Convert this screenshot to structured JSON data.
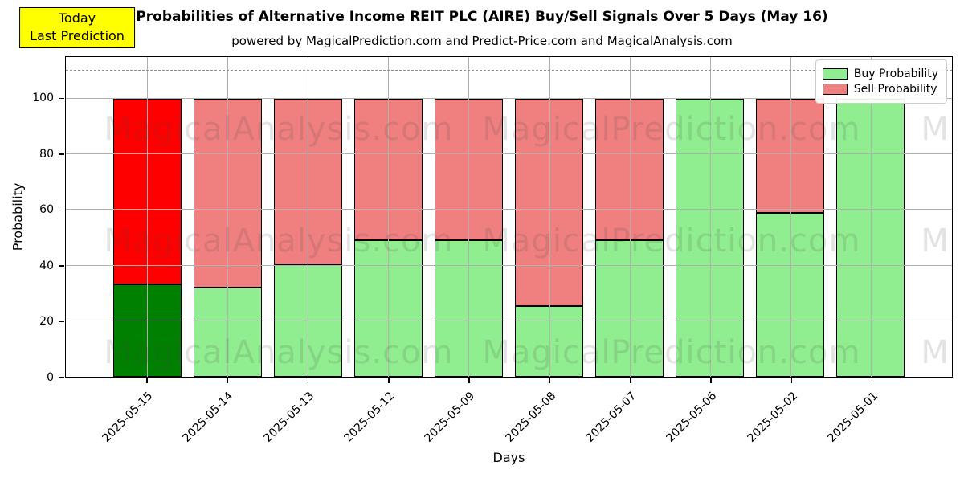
{
  "title": "Probabilities of Alternative Income REIT PLC (AIRE) Buy/Sell Signals Over 5 Days (May 16)",
  "subtitle": "powered by MagicalPrediction.com and Predict-Price.com and MagicalAnalysis.com",
  "annotation": {
    "line1": "Today",
    "line2": "Last Prediction",
    "bg_color": "#ffff00"
  },
  "legend": [
    {
      "label": "Buy Probability",
      "color": "#90ee90"
    },
    {
      "label": "Sell Probability",
      "color": "#f08080"
    }
  ],
  "watermarks": {
    "left_text": "MagicalAnalysis.com",
    "right_text": "MagicalPrediction.com",
    "edge_text": "M",
    "rows_y_percent": [
      22.5,
      57.5,
      92.5
    ],
    "left_x_percent": 4.3,
    "right_x_percent": 47,
    "edge_x_percent": 96.5
  },
  "colors": {
    "buy_default": "#90ee90",
    "sell_default": "#f08080",
    "buy_today": "#008000",
    "sell_today": "#ff0000",
    "bar_edge": "#000000",
    "grid": "#b0b0b0",
    "dashed_line": "#8f8f8f"
  },
  "chart_data": {
    "type": "bar",
    "stacked": true,
    "title": "Probabilities of Alternative Income REIT PLC (AIRE) Buy/Sell Signals Over 5 Days (May 16)",
    "xlabel": "Days",
    "ylabel": "Probability",
    "categories": [
      "2025-05-15",
      "2025-05-14",
      "2025-05-13",
      "2025-05-12",
      "2025-05-09",
      "2025-05-08",
      "2025-05-07",
      "2025-05-06",
      "2025-05-02",
      "2025-05-01"
    ],
    "series": [
      {
        "name": "Buy Probability",
        "values": [
          33,
          32,
          40,
          49,
          49,
          25,
          49,
          100,
          59,
          100
        ]
      },
      {
        "name": "Sell Probability",
        "values": [
          67,
          68,
          60,
          51,
          51,
          75,
          51,
          0,
          41,
          0
        ]
      }
    ],
    "today_index": 0,
    "yticks": [
      0,
      20,
      40,
      60,
      80,
      100
    ],
    "ylim": [
      0,
      115
    ],
    "dashed_line_y": 110,
    "grid": true,
    "legend_position": "upper right"
  }
}
